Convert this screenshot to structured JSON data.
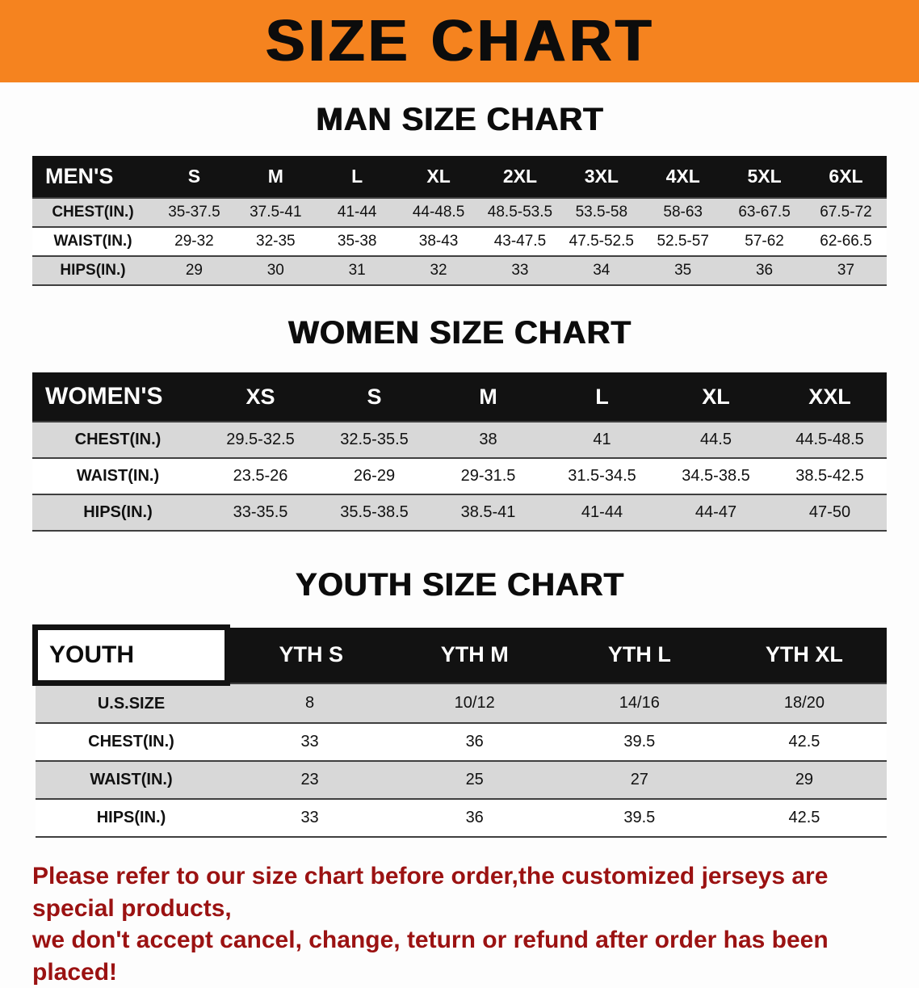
{
  "banner": {
    "title": "SIZE CHART"
  },
  "sections": [
    {
      "heading": "MAN SIZE CHART",
      "table": {
        "header": [
          "MEN'S",
          "S",
          "M",
          "L",
          "XL",
          "2XL",
          "3XL",
          "4XL",
          "5XL",
          "6XL"
        ],
        "rows": [
          [
            "CHEST(IN.)",
            "35-37.5",
            "37.5-41",
            "41-44",
            "44-48.5",
            "48.5-53.5",
            "53.5-58",
            "58-63",
            "63-67.5",
            "67.5-72"
          ],
          [
            "WAIST(IN.)",
            "29-32",
            "32-35",
            "35-38",
            "38-43",
            "43-47.5",
            "47.5-52.5",
            "52.5-57",
            "57-62",
            "62-66.5"
          ],
          [
            "HIPS(IN.)",
            "29",
            "30",
            "31",
            "32",
            "33",
            "34",
            "35",
            "36",
            "37"
          ]
        ]
      }
    },
    {
      "heading": "WOMEN SIZE CHART",
      "table": {
        "header": [
          "WOMEN'S",
          "XS",
          "S",
          "M",
          "L",
          "XL",
          "XXL"
        ],
        "rows": [
          [
            "CHEST(IN.)",
            "29.5-32.5",
            "32.5-35.5",
            "38",
            "41",
            "44.5",
            "44.5-48.5"
          ],
          [
            "WAIST(IN.)",
            "23.5-26",
            "26-29",
            "29-31.5",
            "31.5-34.5",
            "34.5-38.5",
            "38.5-42.5"
          ],
          [
            "HIPS(IN.)",
            "33-35.5",
            "35.5-38.5",
            "38.5-41",
            "41-44",
            "44-47",
            "47-50"
          ]
        ]
      }
    },
    {
      "heading": "YOUTH SIZE CHART",
      "table": {
        "header": [
          "YOUTH",
          "YTH S",
          "YTH M",
          "YTH L",
          "YTH XL"
        ],
        "rows": [
          [
            "U.S.SIZE",
            "8",
            "10/12",
            "14/16",
            "18/20"
          ],
          [
            "CHEST(IN.)",
            "33",
            "36",
            "39.5",
            "42.5"
          ],
          [
            "WAIST(IN.)",
            "23",
            "25",
            "27",
            "29"
          ],
          [
            "HIPS(IN.)",
            "33",
            "36",
            "39.5",
            "42.5"
          ]
        ]
      }
    }
  ],
  "disclaimer": {
    "line1": "Please refer to our size chart before order,the customized jerseys are special products,",
    "line2": "we don't accept cancel, change, teturn or refund after order has been placed!"
  },
  "colors": {
    "banner_orange": "#f5831f",
    "header_black": "#121212",
    "row_gray": "#d8d8d8",
    "disclaimer_red": "#9b1212"
  }
}
